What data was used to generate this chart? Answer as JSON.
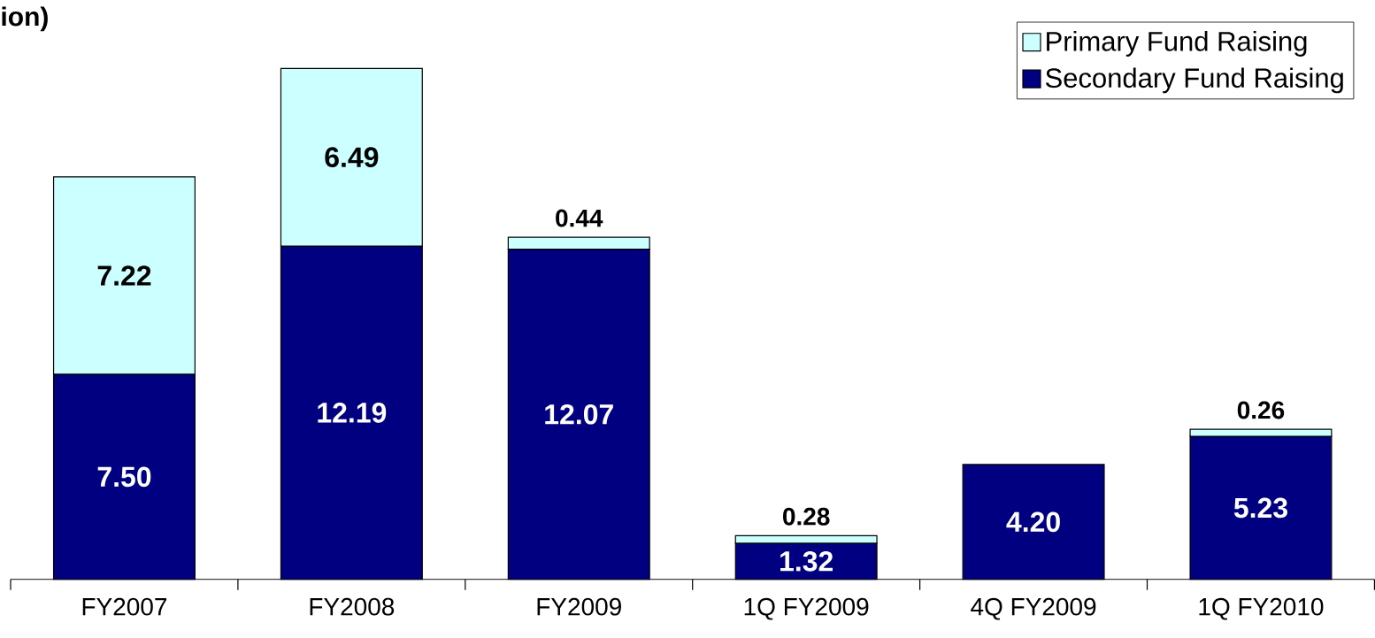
{
  "chart_data": {
    "type": "bar",
    "stacked": true,
    "title": "ion)",
    "categories": [
      "FY2007",
      "FY2008",
      "FY2009",
      "1Q FY2009",
      "4Q FY2009",
      "1Q FY2010"
    ],
    "series": [
      {
        "name": "Secondary Fund Raising",
        "color": "#000080",
        "values": [
          7.5,
          12.19,
          12.07,
          1.32,
          4.2,
          5.23
        ],
        "value_labels": [
          "7.50",
          "12.19",
          "12.07",
          "1.32",
          "4.20",
          "5.23"
        ]
      },
      {
        "name": "Primary Fund Raising",
        "color": "#ccffff",
        "values": [
          7.22,
          6.49,
          0.44,
          0.28,
          null,
          0.26
        ],
        "value_labels": [
          "7.22",
          "6.49",
          "0.44",
          "0.28",
          null,
          "0.26"
        ]
      }
    ],
    "tick_labels": "x",
    "grid": false,
    "legend": "top right"
  }
}
